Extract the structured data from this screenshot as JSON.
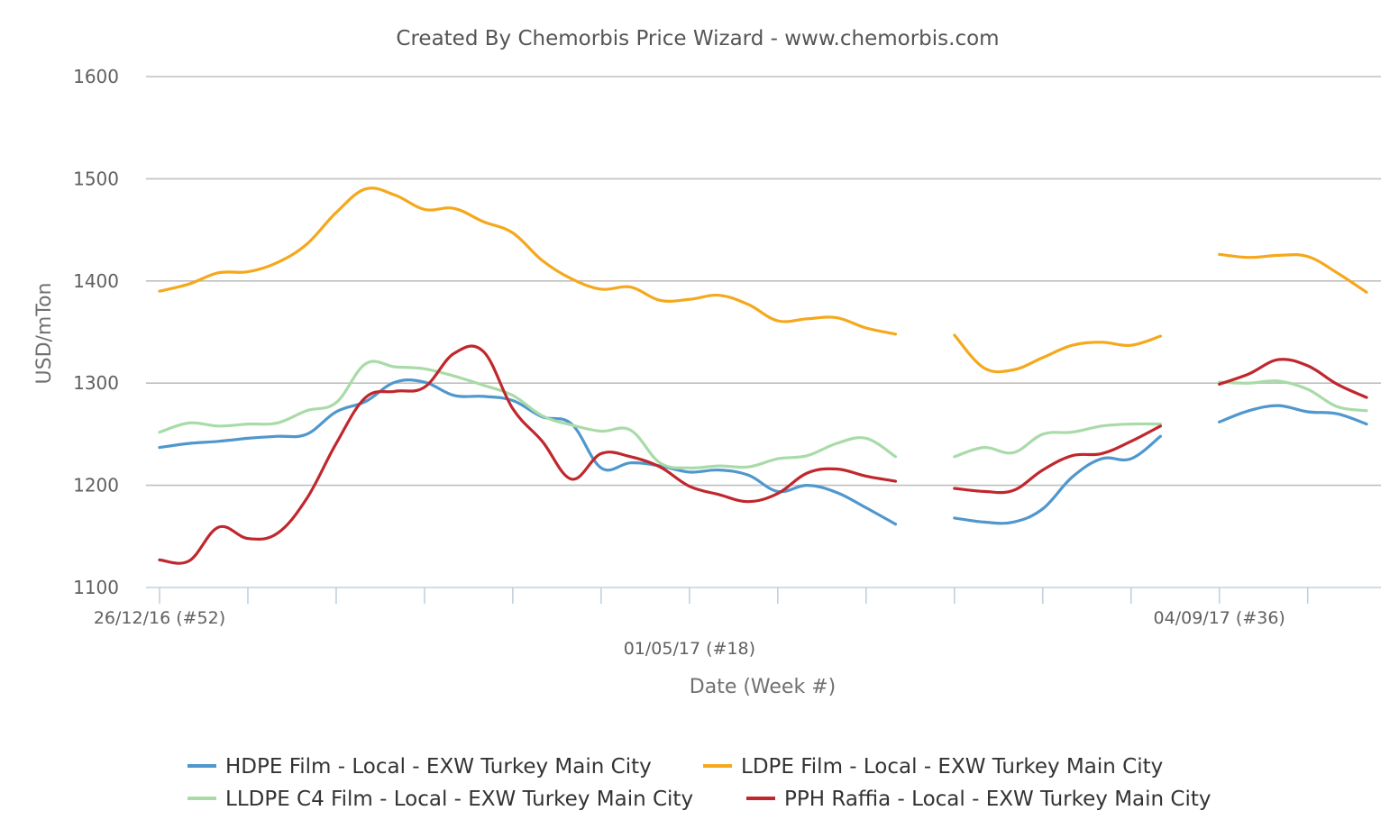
{
  "chart_data": {
    "type": "line",
    "title": "Created By Chemorbis Price Wizard - www.chemorbis.com",
    "xlabel": "Date (Week #)",
    "ylabel": "USD/mTon",
    "ylim": [
      1100,
      1600
    ],
    "yticks": [
      1100,
      1200,
      1300,
      1400,
      1500,
      1600
    ],
    "x_tick_labels": [
      {
        "week": 0,
        "label": "26/12/16 (#52)"
      },
      {
        "week": 18,
        "label": "01/05/17 (#18)"
      },
      {
        "week": 36,
        "label": "04/09/17 (#36)"
      }
    ],
    "x_range_weeks": [
      0,
      41
    ],
    "grid": true,
    "legend_position": "bottom",
    "series": [
      {
        "name": "HDPE Film - Local - EXW Turkey Main City",
        "color": "#4f97cd",
        "segments": [
          [
            [
              0,
              1237
            ],
            [
              1,
              1241
            ],
            [
              2,
              1243
            ],
            [
              3,
              1246
            ],
            [
              4,
              1248
            ],
            [
              5,
              1250
            ],
            [
              6,
              1272
            ],
            [
              7,
              1282
            ],
            [
              8,
              1301
            ],
            [
              9,
              1301
            ],
            [
              10,
              1288
            ],
            [
              11,
              1287
            ],
            [
              12,
              1283
            ],
            [
              13,
              1267
            ],
            [
              14,
              1260
            ],
            [
              15,
              1217
            ],
            [
              16,
              1222
            ],
            [
              17,
              1219
            ],
            [
              18,
              1213
            ],
            [
              19,
              1215
            ],
            [
              20,
              1210
            ],
            [
              21,
              1194
            ],
            [
              22,
              1200
            ],
            [
              23,
              1193
            ],
            [
              24,
              1178
            ],
            [
              25,
              1162
            ]
          ],
          [
            [
              27,
              1168
            ],
            [
              28,
              1164
            ],
            [
              29,
              1164
            ],
            [
              30,
              1177
            ],
            [
              31,
              1208
            ],
            [
              32,
              1226
            ],
            [
              33,
              1226
            ],
            [
              34,
              1248
            ]
          ],
          [
            [
              36,
              1262
            ],
            [
              37,
              1273
            ],
            [
              38,
              1278
            ],
            [
              39,
              1272
            ],
            [
              40,
              1270
            ],
            [
              41,
              1260
            ]
          ]
        ]
      },
      {
        "name": "LDPE Film - Local - EXW Turkey Main City",
        "color": "#f5a81c",
        "segments": [
          [
            [
              0,
              1390
            ],
            [
              1,
              1397
            ],
            [
              2,
              1408
            ],
            [
              3,
              1409
            ],
            [
              4,
              1418
            ],
            [
              5,
              1436
            ],
            [
              6,
              1467
            ],
            [
              7,
              1490
            ],
            [
              8,
              1484
            ],
            [
              9,
              1470
            ],
            [
              10,
              1471
            ],
            [
              11,
              1458
            ],
            [
              12,
              1447
            ],
            [
              13,
              1420
            ],
            [
              14,
              1402
            ],
            [
              15,
              1392
            ],
            [
              16,
              1394
            ],
            [
              17,
              1381
            ],
            [
              18,
              1382
            ],
            [
              19,
              1386
            ],
            [
              20,
              1377
            ],
            [
              21,
              1361
            ],
            [
              22,
              1363
            ],
            [
              23,
              1364
            ],
            [
              24,
              1354
            ],
            [
              25,
              1348
            ]
          ],
          [
            [
              27,
              1347
            ],
            [
              28,
              1315
            ],
            [
              29,
              1313
            ],
            [
              30,
              1325
            ],
            [
              31,
              1337
            ],
            [
              32,
              1340
            ],
            [
              33,
              1337
            ],
            [
              34,
              1346
            ]
          ],
          [
            [
              36,
              1426
            ],
            [
              37,
              1423
            ],
            [
              38,
              1425
            ],
            [
              39,
              1424
            ],
            [
              40,
              1408
            ],
            [
              41,
              1389
            ]
          ]
        ]
      },
      {
        "name": "LLDPE C4 Film - Local - EXW Turkey Main City",
        "color": "#a8dba8",
        "segments": [
          [
            [
              0,
              1252
            ],
            [
              1,
              1261
            ],
            [
              2,
              1258
            ],
            [
              3,
              1260
            ],
            [
              4,
              1261
            ],
            [
              5,
              1273
            ],
            [
              6,
              1281
            ],
            [
              7,
              1319
            ],
            [
              8,
              1316
            ],
            [
              9,
              1314
            ],
            [
              10,
              1307
            ],
            [
              11,
              1298
            ],
            [
              12,
              1288
            ],
            [
              13,
              1268
            ],
            [
              14,
              1259
            ],
            [
              15,
              1253
            ],
            [
              16,
              1254
            ],
            [
              17,
              1222
            ],
            [
              18,
              1217
            ],
            [
              19,
              1219
            ],
            [
              20,
              1218
            ],
            [
              21,
              1226
            ],
            [
              22,
              1229
            ],
            [
              23,
              1241
            ],
            [
              24,
              1246
            ],
            [
              25,
              1228
            ]
          ],
          [
            [
              27,
              1228
            ],
            [
              28,
              1237
            ],
            [
              29,
              1232
            ],
            [
              30,
              1250
            ],
            [
              31,
              1252
            ],
            [
              32,
              1258
            ],
            [
              33,
              1260
            ],
            [
              34,
              1260
            ]
          ],
          [
            [
              36,
              1301
            ],
            [
              37,
              1300
            ],
            [
              38,
              1302
            ],
            [
              39,
              1294
            ],
            [
              40,
              1277
            ],
            [
              41,
              1273
            ]
          ]
        ]
      },
      {
        "name": "PPH Raffia - Local - EXW Turkey Main City",
        "color": "#c0272d",
        "segments": [
          [
            [
              0,
              1127
            ],
            [
              1,
              1126
            ],
            [
              2,
              1159
            ],
            [
              3,
              1148
            ],
            [
              4,
              1153
            ],
            [
              5,
              1187
            ],
            [
              6,
              1241
            ],
            [
              7,
              1286
            ],
            [
              8,
              1292
            ],
            [
              9,
              1296
            ],
            [
              10,
              1329
            ],
            [
              11,
              1331
            ],
            [
              12,
              1275
            ],
            [
              13,
              1243
            ],
            [
              14,
              1206
            ],
            [
              15,
              1231
            ],
            [
              16,
              1228
            ],
            [
              17,
              1218
            ],
            [
              18,
              1199
            ],
            [
              19,
              1191
            ],
            [
              20,
              1184
            ],
            [
              21,
              1192
            ],
            [
              22,
              1212
            ],
            [
              23,
              1216
            ],
            [
              24,
              1209
            ],
            [
              25,
              1204
            ]
          ],
          [
            [
              27,
              1197
            ],
            [
              28,
              1194
            ],
            [
              29,
              1195
            ],
            [
              30,
              1215
            ],
            [
              31,
              1229
            ],
            [
              32,
              1231
            ],
            [
              33,
              1243
            ],
            [
              34,
              1258
            ]
          ],
          [
            [
              36,
              1299
            ],
            [
              37,
              1309
            ],
            [
              38,
              1323
            ],
            [
              39,
              1317
            ],
            [
              40,
              1299
            ],
            [
              41,
              1286
            ]
          ]
        ]
      }
    ]
  }
}
